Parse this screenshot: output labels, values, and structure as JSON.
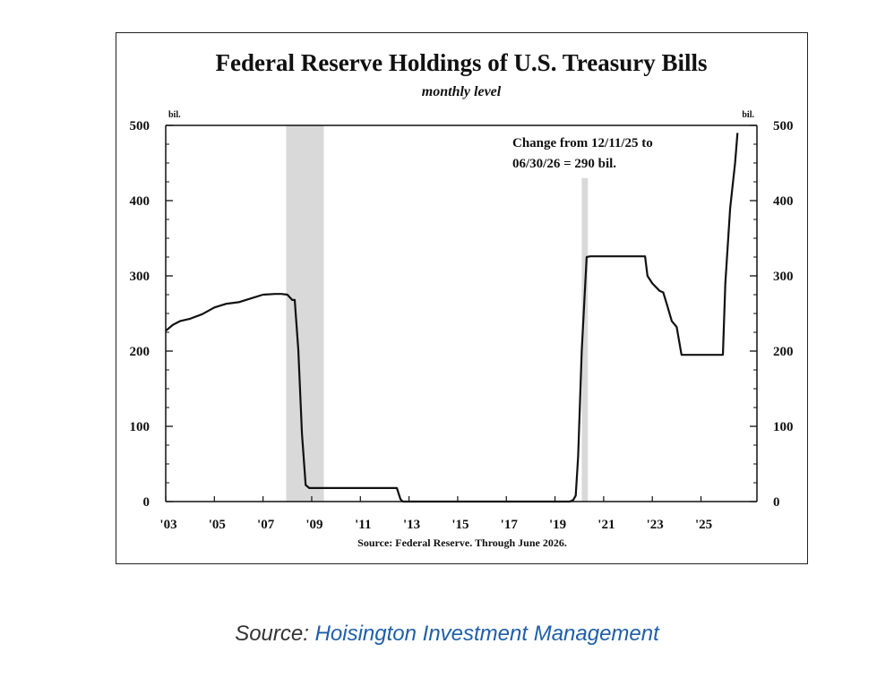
{
  "chart_data": {
    "type": "line",
    "title": "Federal Reserve Holdings of U.S. Treasury Bills",
    "subtitle": "monthly level",
    "unit_left": "bil.",
    "unit_right": "bil.",
    "ylim": [
      0,
      500
    ],
    "yticks": [
      0,
      100,
      200,
      300,
      400,
      500
    ],
    "xlim": [
      2003.0,
      2027.3
    ],
    "xticks": [
      {
        "value": 2003,
        "label": "'03"
      },
      {
        "value": 2005,
        "label": "'05"
      },
      {
        "value": 2007,
        "label": "'07"
      },
      {
        "value": 2009,
        "label": "'09"
      },
      {
        "value": 2011,
        "label": "'11"
      },
      {
        "value": 2013,
        "label": "'13"
      },
      {
        "value": 2015,
        "label": "'15"
      },
      {
        "value": 2017,
        "label": "'17"
      },
      {
        "value": 2019,
        "label": "'19"
      },
      {
        "value": 2021,
        "label": "'21"
      },
      {
        "value": 2023,
        "label": "'23"
      },
      {
        "value": 2025,
        "label": "'25"
      }
    ],
    "recessions": [
      {
        "start": 2007.95,
        "end": 2009.5
      },
      {
        "start": 2020.1,
        "end": 2020.35
      }
    ],
    "series": [
      {
        "x": [
          2003.0,
          2003.3,
          2003.6,
          2004.0,
          2004.5,
          2005.0,
          2005.5,
          2006.0,
          2006.5,
          2007.0,
          2007.5,
          2007.75,
          2008.0,
          2008.2,
          2008.3,
          2008.45,
          2008.6,
          2008.75,
          2008.9,
          2009.0,
          2010.0,
          2011.0,
          2012.0,
          2012.5,
          2012.65,
          2012.75,
          2013.0,
          2015.0,
          2017.0,
          2019.0,
          2019.6,
          2019.75,
          2019.85,
          2019.95,
          2020.1,
          2020.3,
          2020.45,
          2021.0,
          2022.0,
          2022.7,
          2022.8,
          2023.0,
          2023.3,
          2023.45,
          2023.6,
          2023.8,
          2024.0,
          2024.2,
          2024.5,
          2025.0,
          2025.5,
          2025.8,
          2025.9,
          2026.0,
          2026.2,
          2026.4,
          2026.5
        ],
        "values": [
          227,
          235,
          240,
          243,
          249,
          258,
          263,
          265,
          270,
          275,
          276,
          276,
          275,
          268,
          268,
          202,
          90,
          22,
          18,
          18,
          18,
          18,
          18,
          18,
          3,
          0,
          0,
          0,
          0,
          0,
          0,
          2,
          8,
          60,
          200,
          325,
          326,
          326,
          326,
          326,
          300,
          290,
          280,
          278,
          262,
          240,
          232,
          195,
          195,
          195,
          195,
          195,
          195,
          290,
          390,
          450,
          490
        ]
      }
    ],
    "annotation": [
      "Change from 12/11/25 to",
      "06/30/26 = 290 bil."
    ],
    "source_note": "Source: Federal Reserve. Through June 2026."
  },
  "footer": {
    "prefix": "Source: ",
    "link_text": "Hoisington Investment Management"
  },
  "colors": {
    "line": "#111111",
    "recession": "#d9d9d9"
  }
}
